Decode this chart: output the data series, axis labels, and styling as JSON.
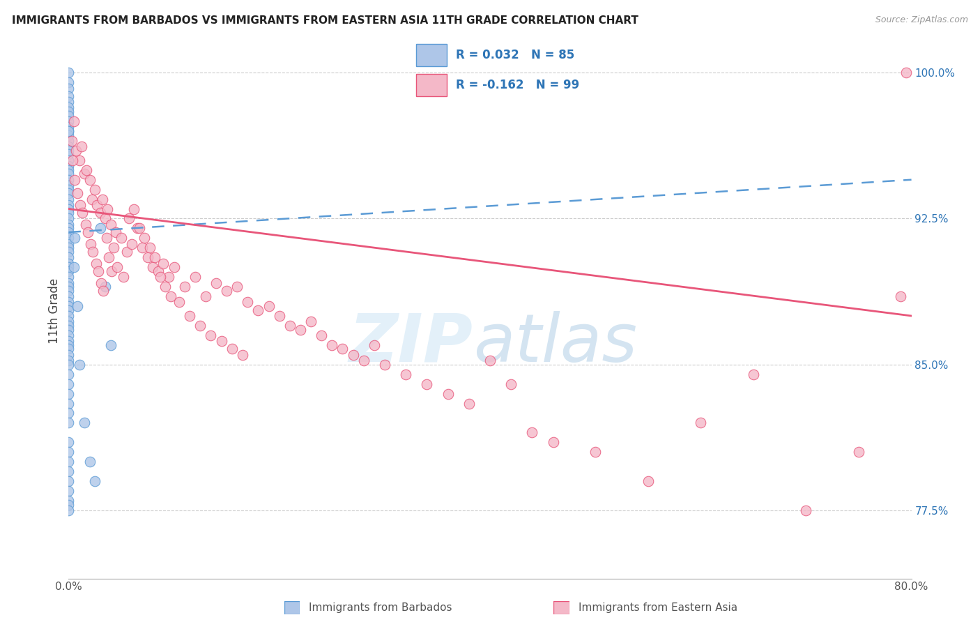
{
  "title": "IMMIGRANTS FROM BARBADOS VS IMMIGRANTS FROM EASTERN ASIA 11TH GRADE CORRELATION CHART",
  "source": "Source: ZipAtlas.com",
  "ylabel": "11th Grade",
  "xlim": [
    0.0,
    80.0
  ],
  "ylim": [
    74.0,
    101.5
  ],
  "right_yticks": [
    100.0,
    92.5,
    85.0,
    77.5
  ],
  "r_barbados": 0.032,
  "n_barbados": 85,
  "r_eastern_asia": -0.162,
  "n_eastern_asia": 99,
  "color_barbados": "#aec6e8",
  "color_eastern_asia": "#f4b8c8",
  "color_barbados_line": "#5b9bd5",
  "color_eastern_asia_line": "#e8567a",
  "color_blue_text": "#2E75B6",
  "barbados_x": [
    0.0,
    0.0,
    0.0,
    0.0,
    0.0,
    0.0,
    0.0,
    0.0,
    0.0,
    0.0,
    0.0,
    0.0,
    0.0,
    0.0,
    0.0,
    0.0,
    0.0,
    0.0,
    0.0,
    0.0,
    0.0,
    0.0,
    0.0,
    0.0,
    0.0,
    0.0,
    0.0,
    0.0,
    0.0,
    0.0,
    0.0,
    0.0,
    0.0,
    0.0,
    0.0,
    0.0,
    0.0,
    0.0,
    0.0,
    0.0,
    0.0,
    0.0,
    0.0,
    0.0,
    0.0,
    0.0,
    0.0,
    0.0,
    0.0,
    0.0,
    0.0,
    0.0,
    0.0,
    0.0,
    0.0,
    0.0,
    0.0,
    0.0,
    0.0,
    0.0,
    0.0,
    0.0,
    0.0,
    0.0,
    0.0,
    0.0,
    0.0,
    0.0,
    0.0,
    0.0,
    0.0,
    0.0,
    0.0,
    0.0,
    0.0,
    0.5,
    0.6,
    0.8,
    1.0,
    1.5,
    2.0,
    2.5,
    3.0,
    3.5,
    4.0
  ],
  "barbados_y": [
    100.0,
    99.5,
    99.2,
    98.8,
    98.5,
    98.2,
    98.0,
    97.8,
    97.5,
    97.2,
    97.0,
    96.8,
    96.5,
    96.2,
    96.0,
    95.8,
    95.5,
    95.2,
    95.0,
    94.8,
    94.5,
    94.2,
    94.0,
    93.8,
    93.5,
    93.2,
    93.0,
    92.8,
    92.5,
    92.2,
    92.0,
    91.8,
    91.5,
    91.2,
    91.0,
    90.8,
    90.5,
    90.2,
    90.0,
    89.8,
    89.5,
    89.2,
    89.0,
    88.8,
    88.5,
    88.2,
    88.0,
    87.8,
    87.5,
    87.2,
    87.0,
    86.8,
    86.5,
    86.2,
    86.0,
    85.8,
    85.5,
    85.2,
    85.0,
    84.5,
    84.0,
    83.5,
    83.0,
    82.5,
    82.0,
    81.0,
    80.5,
    80.0,
    79.5,
    79.0,
    78.5,
    78.0,
    77.8,
    77.5,
    97.0,
    90.0,
    91.5,
    88.0,
    85.0,
    82.0,
    80.0,
    79.0,
    92.0,
    89.0,
    86.0
  ],
  "eastern_x": [
    0.3,
    0.5,
    0.7,
    1.0,
    1.2,
    1.5,
    1.7,
    2.0,
    2.2,
    2.5,
    2.7,
    3.0,
    3.2,
    3.5,
    3.7,
    4.0,
    4.5,
    5.0,
    5.5,
    6.0,
    6.5,
    7.0,
    7.5,
    8.0,
    8.5,
    9.0,
    9.5,
    10.0,
    11.0,
    12.0,
    13.0,
    14.0,
    15.0,
    16.0,
    17.0,
    18.0,
    19.0,
    20.0,
    21.0,
    22.0,
    23.0,
    24.0,
    25.0,
    26.0,
    27.0,
    28.0,
    29.0,
    30.0,
    32.0,
    34.0,
    36.0,
    38.0,
    40.0,
    42.0,
    44.0,
    46.0,
    50.0,
    55.0,
    60.0,
    65.0,
    70.0,
    75.0,
    79.0,
    79.5,
    0.4,
    0.6,
    0.8,
    1.1,
    1.3,
    1.6,
    1.8,
    2.1,
    2.3,
    2.6,
    2.8,
    3.1,
    3.3,
    3.6,
    3.8,
    4.1,
    4.3,
    4.6,
    5.2,
    5.7,
    6.2,
    6.7,
    7.2,
    7.7,
    8.2,
    8.7,
    9.2,
    9.7,
    10.5,
    11.5,
    12.5,
    13.5,
    14.5,
    15.5,
    16.5
  ],
  "eastern_y": [
    96.5,
    97.5,
    96.0,
    95.5,
    96.2,
    94.8,
    95.0,
    94.5,
    93.5,
    94.0,
    93.2,
    92.8,
    93.5,
    92.5,
    93.0,
    92.2,
    91.8,
    91.5,
    90.8,
    91.2,
    92.0,
    91.0,
    90.5,
    90.0,
    89.8,
    90.2,
    89.5,
    90.0,
    89.0,
    89.5,
    88.5,
    89.2,
    88.8,
    89.0,
    88.2,
    87.8,
    88.0,
    87.5,
    87.0,
    86.8,
    87.2,
    86.5,
    86.0,
    85.8,
    85.5,
    85.2,
    86.0,
    85.0,
    84.5,
    84.0,
    83.5,
    83.0,
    85.2,
    84.0,
    81.5,
    81.0,
    80.5,
    79.0,
    82.0,
    84.5,
    77.5,
    80.5,
    88.5,
    100.0,
    95.5,
    94.5,
    93.8,
    93.2,
    92.8,
    92.2,
    91.8,
    91.2,
    90.8,
    90.2,
    89.8,
    89.2,
    88.8,
    91.5,
    90.5,
    89.8,
    91.0,
    90.0,
    89.5,
    92.5,
    93.0,
    92.0,
    91.5,
    91.0,
    90.5,
    89.5,
    89.0,
    88.5,
    88.2,
    87.5,
    87.0,
    86.5,
    86.2,
    85.8,
    85.5
  ],
  "trend_blue_x0": 0.0,
  "trend_blue_x1": 80.0,
  "trend_blue_y0": 91.8,
  "trend_blue_y1": 94.5,
  "trend_pink_x0": 0.0,
  "trend_pink_x1": 80.0,
  "trend_pink_y0": 93.0,
  "trend_pink_y1": 87.5
}
